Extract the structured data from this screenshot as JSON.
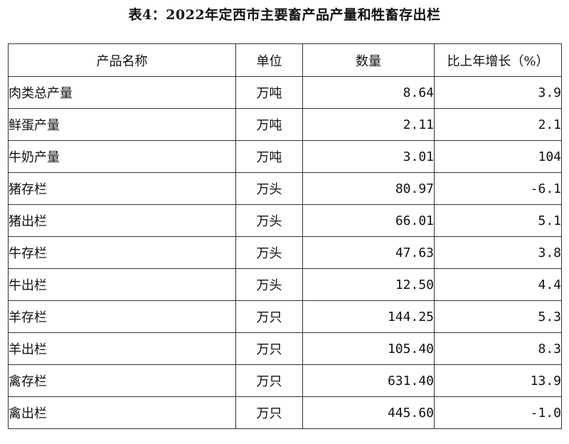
{
  "title": "表4：2022年定西市主要畜产品产量和牲畜存出栏",
  "table": {
    "headers": [
      "产品名称",
      "单位",
      "数量",
      "比上年增长（%）"
    ],
    "rows": [
      {
        "name": "肉类总产量",
        "unit": "万吨",
        "quantity": "8.64",
        "growth": "3.9"
      },
      {
        "name": "鲜蛋产量",
        "unit": "万吨",
        "quantity": "2.11",
        "growth": "2.1"
      },
      {
        "name": "牛奶产量",
        "unit": "万吨",
        "quantity": "3.01",
        "growth": "104"
      },
      {
        "name": "猪存栏",
        "unit": "万头",
        "quantity": "80.97",
        "growth": "-6.1"
      },
      {
        "name": "猪出栏",
        "unit": "万头",
        "quantity": "66.01",
        "growth": "5.1"
      },
      {
        "name": "牛存栏",
        "unit": "万头",
        "quantity": "47.63",
        "growth": "3.8"
      },
      {
        "name": "牛出栏",
        "unit": "万头",
        "quantity": "12.50",
        "growth": "4.4"
      },
      {
        "name": "羊存栏",
        "unit": "万只",
        "quantity": "144.25",
        "growth": "5.3"
      },
      {
        "name": "羊出栏",
        "unit": "万只",
        "quantity": "105.40",
        "growth": "8.3"
      },
      {
        "name": "禽存栏",
        "unit": "万只",
        "quantity": "631.40",
        "growth": "13.9"
      },
      {
        "name": "禽出栏",
        "unit": "万只",
        "quantity": "445.60",
        "growth": "-1.0"
      }
    ]
  }
}
